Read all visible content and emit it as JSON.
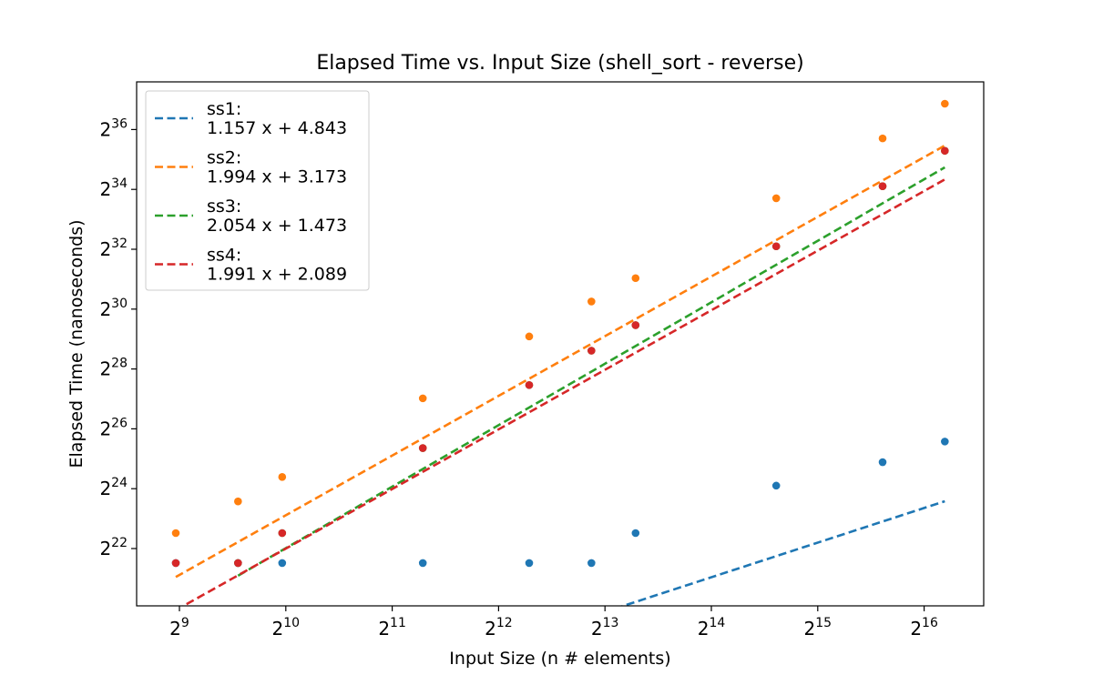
{
  "chart_data": {
    "type": "scatter",
    "title": "Elapsed Time vs. Input Size (shell_sort - reverse)",
    "xlabel": "Input Size (n # elements)",
    "ylabel": "Elapsed Time (nanoseconds)",
    "x_scale": "log2",
    "y_scale": "log2",
    "xlim": [
      512,
      65536
    ],
    "ylim": [
      1048576,
      137438953472
    ],
    "x_ticks": [
      {
        "value": 512,
        "base": "2",
        "exp": "9"
      },
      {
        "value": 1024,
        "base": "2",
        "exp": "10"
      },
      {
        "value": 2048,
        "base": "2",
        "exp": "11"
      },
      {
        "value": 4096,
        "base": "2",
        "exp": "12"
      },
      {
        "value": 8192,
        "base": "2",
        "exp": "13"
      },
      {
        "value": 16384,
        "base": "2",
        "exp": "14"
      },
      {
        "value": 32768,
        "base": "2",
        "exp": "15"
      },
      {
        "value": 65536,
        "base": "2",
        "exp": "16"
      }
    ],
    "y_ticks": [
      {
        "value": 4194304,
        "base": "2",
        "exp": "22"
      },
      {
        "value": 16777216,
        "base": "2",
        "exp": "24"
      },
      {
        "value": 67108864,
        "base": "2",
        "exp": "26"
      },
      {
        "value": 268435456,
        "base": "2",
        "exp": "28"
      },
      {
        "value": 1073741824,
        "base": "2",
        "exp": "30"
      },
      {
        "value": 4294967296,
        "base": "2",
        "exp": "32"
      },
      {
        "value": 17179869184,
        "base": "2",
        "exp": "34"
      },
      {
        "value": 68719476736,
        "base": "2",
        "exp": "36"
      }
    ],
    "grid": false,
    "legend_position": "top-left",
    "series": [
      {
        "name": "ss1:",
        "fit_label": "1.157 x + 4.843",
        "color": "#1f77b4",
        "x": [
          500,
          750,
          1000,
          2500,
          5000,
          7500,
          10000,
          25000,
          50000,
          75000
        ],
        "y": [
          3000000,
          3000000,
          3000000,
          3000000,
          3000000,
          3000000,
          6000000,
          18000000,
          31000000,
          50000000
        ],
        "fit": {
          "slope": 1.157,
          "intercept": 4.843,
          "x_range": [
            7500,
            75000
          ]
        }
      },
      {
        "name": "ss2:",
        "fit_label": "1.994 x + 3.173",
        "color": "#ff7f0e",
        "x": [
          500,
          750,
          1000,
          2500,
          5000,
          7500,
          10000,
          25000,
          50000,
          75000
        ],
        "y": [
          6000000,
          12500000,
          22000000,
          136000000,
          570000000,
          1280000000,
          2200000000,
          14000000000,
          56000000000,
          125000000000
        ],
        "fit": {
          "slope": 1.994,
          "intercept": 3.173,
          "x_range": [
            500,
            75000
          ]
        }
      },
      {
        "name": "ss3:",
        "fit_label": "2.054 x + 1.473",
        "color": "#2ca02c",
        "x": [
          750,
          1000,
          2500,
          5000,
          7500,
          10000,
          25000,
          50000,
          75000
        ],
        "y": [
          3000000,
          6000000,
          43000000,
          185000000,
          410000000,
          740000000,
          4600000000,
          18500000000,
          42000000000
        ],
        "fit": {
          "slope": 2.054,
          "intercept": 1.473,
          "x_range": [
            750,
            75000
          ]
        }
      },
      {
        "name": "ss4:",
        "fit_label": "1.991 x + 2.089",
        "color": "#d62728",
        "x": [
          500,
          750,
          1000,
          2500,
          5000,
          7500,
          10000,
          25000,
          50000,
          75000
        ],
        "y": [
          3000000,
          3000000,
          6000000,
          43000000,
          185000000,
          410000000,
          740000000,
          4600000000,
          18500000000,
          42000000000
        ],
        "fit": {
          "slope": 1.991,
          "intercept": 2.089,
          "x_range": [
            500,
            75000
          ]
        }
      }
    ]
  }
}
